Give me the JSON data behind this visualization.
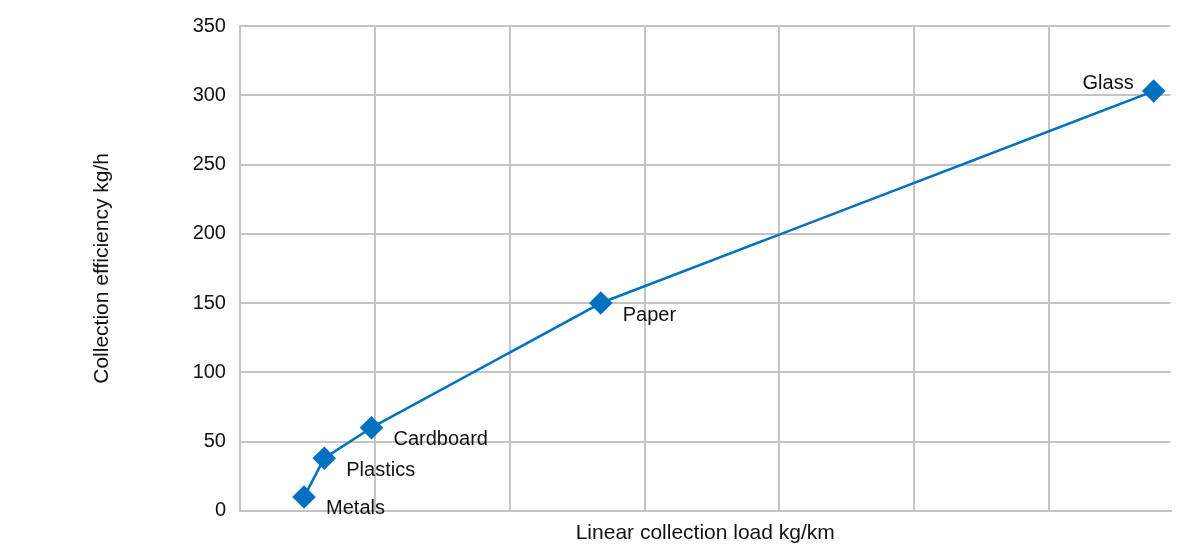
{
  "chart_data": {
    "type": "line",
    "xlabel": "Linear collection load kg/km",
    "ylabel": "Collection efficiency kg/h",
    "categories": [
      null,
      null,
      null,
      null,
      null,
      null,
      null,
      null,
      null,
      null,
      null,
      null,
      null,
      null,
      null,
      null,
      null,
      null,
      null,
      null,
      null,
      null,
      null,
      null,
      null,
      null,
      null,
      null,
      null,
      null,
      null,
      null,
      null,
      null,
      null,
      null,
      null,
      null,
      null,
      null,
      null,
      null,
      null,
      null,
      null,
      null,
      null,
      null,
      null,
      null,
      null,
      null,
      null,
      null,
      null,
      null,
      null,
      null,
      null,
      null,
      null,
      null,
      null,
      null,
      null,
      null,
      null,
      null,
      null,
      null,
      null,
      null,
      null,
      null,
      null,
      null,
      null,
      null,
      null,
      null,
      null,
      null,
      null,
      null,
      null,
      null,
      null,
      null,
      null,
      null,
      null,
      null,
      null,
      null,
      null,
      null,
      null,
      null,
      null,
      null,
      null,
      null,
      null,
      null,
      null,
      null,
      null,
      null,
      null,
      null,
      null,
      null,
      null,
      null,
      null,
      null,
      null,
      null,
      null,
      null,
      null,
      null,
      null,
      null,
      null,
      null,
      null,
      null,
      null,
      null,
      null,
      null,
      null,
      null,
      null,
      null,
      null,
      null
    ],
    "ylim": [
      0,
      350
    ],
    "yticks": [
      0,
      50,
      100,
      150,
      200,
      250,
      300,
      350
    ],
    "tick_labels": "y",
    "grid": true,
    "marker": "diamond",
    "line_style": "solid",
    "series": [
      {
        "color": "#0070c0",
        "values": [
          null,
          null,
          null,
          null,
          null,
          null,
          null,
          null,
          null,
          10,
          null,
          null,
          38,
          null,
          null,
          null,
          null,
          null,
          null,
          60,
          null,
          null,
          null,
          null,
          null,
          null,
          null,
          null,
          null,
          null,
          null,
          null,
          null,
          null,
          null,
          null,
          null,
          null,
          null,
          null,
          null,
          null,
          null,
          null,
          null,
          null,
          null,
          null,
          null,
          null,
          null,
          null,
          null,
          150,
          null,
          null,
          null,
          null,
          null,
          null,
          null,
          null,
          null,
          null,
          null,
          null,
          null,
          null,
          null,
          null,
          null,
          null,
          null,
          null,
          null,
          null,
          null,
          null,
          null,
          null,
          null,
          null,
          null,
          null,
          null,
          null,
          null,
          null,
          null,
          null,
          null,
          null,
          null,
          null,
          null,
          null,
          null,
          null,
          null,
          null,
          null,
          null,
          null,
          null,
          null,
          null,
          null,
          null,
          null,
          null,
          null,
          null,
          null,
          null,
          null,
          null,
          null,
          null,
          null,
          null,
          null,
          null,
          null,
          null,
          null,
          null,
          null,
          null,
          null,
          null,
          null,
          null,
          null,
          null,
          null,
          303,
          null,
          null
        ]
      }
    ],
    "annotations": [
      "Metals",
      "Plastics",
      "Cardboard",
      "Paper",
      "Glass"
    ]
  }
}
